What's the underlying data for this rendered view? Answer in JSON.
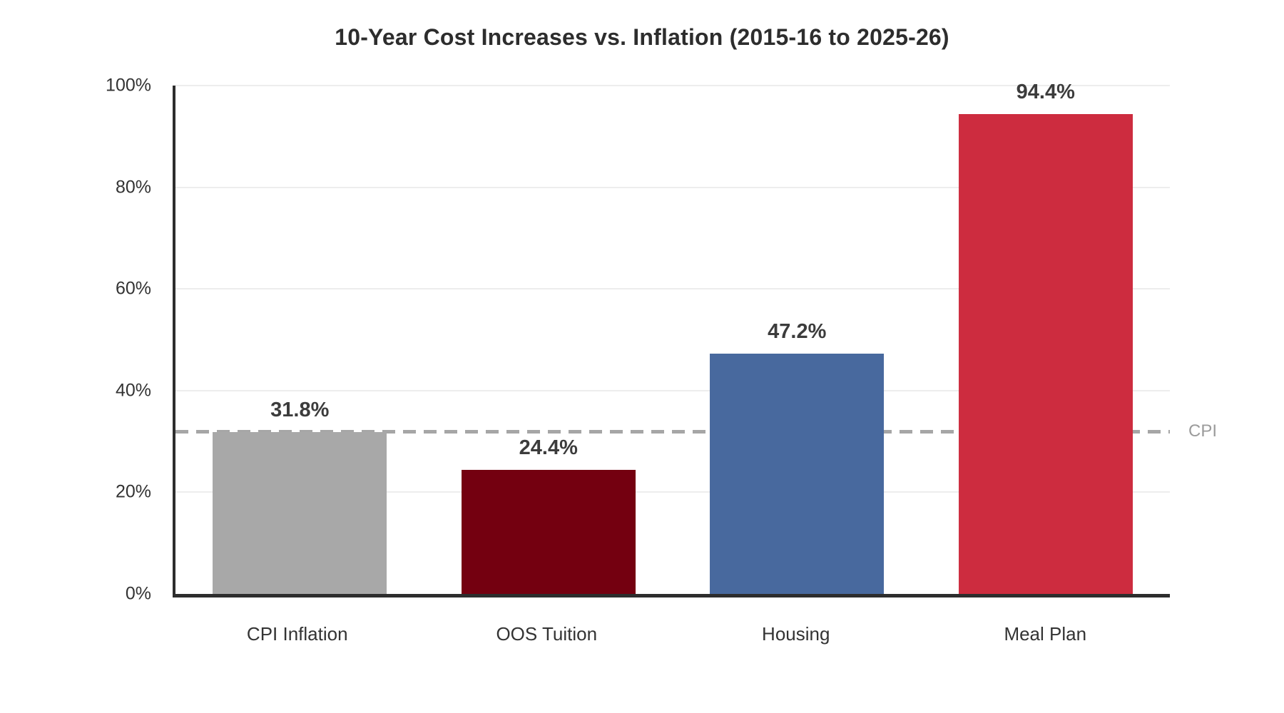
{
  "chart_data": {
    "type": "bar",
    "title": "10-Year Cost Increases vs. Inflation (2015-16 to 2025-26)",
    "categories": [
      "CPI Inflation",
      "OOS Tuition",
      "Housing",
      "Meal Plan"
    ],
    "values": [
      31.8,
      24.4,
      47.2,
      94.4
    ],
    "value_labels": [
      "31.8%",
      "24.4%",
      "47.2%",
      "94.4%"
    ],
    "bar_colors": [
      "#a8a8a8",
      "#740010",
      "#48699e",
      "#cd2c3f"
    ],
    "xlabel": "",
    "ylabel": "",
    "ylim": [
      0,
      100
    ],
    "yticks": [
      0,
      20,
      40,
      60,
      80,
      100
    ],
    "ytick_labels": [
      "0%",
      "20%",
      "40%",
      "60%",
      "80%",
      "100%"
    ],
    "grid": "horizontal",
    "legend": "none",
    "reference_line": {
      "value": 31.8,
      "label": "CPI",
      "color": "#a6a6a6",
      "style": "dashed"
    },
    "colors": {
      "background": "#ffffff",
      "axis_spine": "#2d2d2d",
      "gridline": "#ededed",
      "title_text": "#2d2d2d",
      "value_label_text": "#3c3c3c",
      "tick_label_text": "#333333",
      "reference_label_text": "#9b9b9b"
    }
  }
}
